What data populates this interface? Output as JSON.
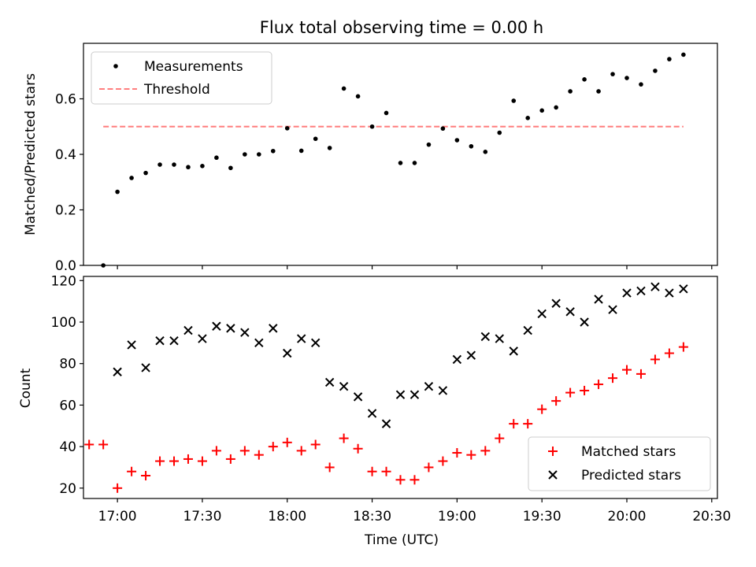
{
  "figure": {
    "title": "Flux total observing time = 0.00 h"
  },
  "chart_data": [
    {
      "type": "scatter",
      "name": "ratio-panel",
      "ylabel": "Matched/Predicted stars",
      "xlabel": "",
      "xlim": [
        "16:48",
        "20:32"
      ],
      "ylim": [
        0,
        0.8
      ],
      "yticks": [
        0.0,
        0.2,
        0.4,
        0.6
      ],
      "ytick_labels": [
        "0.0",
        "0.2",
        "0.4",
        "0.6"
      ],
      "grid": false,
      "legend": "top-left",
      "series": [
        {
          "name": "Measurements",
          "kind": "points",
          "color": "#000000",
          "x": [
            "16:55",
            "17:00",
            "17:05",
            "17:10",
            "17:15",
            "17:20",
            "17:25",
            "17:30",
            "17:35",
            "17:40",
            "17:45",
            "17:50",
            "17:55",
            "18:00",
            "18:05",
            "18:10",
            "18:15",
            "18:20",
            "18:25",
            "18:30",
            "18:35",
            "18:40",
            "18:45",
            "18:50",
            "18:55",
            "19:00",
            "19:05",
            "19:10",
            "19:15",
            "19:20",
            "19:25",
            "19:30",
            "19:35",
            "19:40",
            "19:45",
            "19:50",
            "19:55",
            "20:00",
            "20:05",
            "20:10",
            "20:15",
            "20:20"
          ],
          "y": [
            0.0,
            0.265,
            0.315,
            0.333,
            0.363,
            0.363,
            0.354,
            0.358,
            0.388,
            0.351,
            0.4,
            0.4,
            0.412,
            0.494,
            0.413,
            0.456,
            0.423,
            0.637,
            0.609,
            0.5,
            0.549,
            0.369,
            0.369,
            0.435,
            0.493,
            0.451,
            0.429,
            0.409,
            0.478,
            0.593,
            0.531,
            0.558,
            0.569,
            0.627,
            0.67,
            0.627,
            0.689,
            0.675,
            0.652,
            0.701,
            0.743,
            0.759
          ]
        },
        {
          "name": "Threshold",
          "kind": "dashed-line",
          "color": "#ff7f7f",
          "x": [
            "16:55",
            "20:20"
          ],
          "y": [
            0.5,
            0.5
          ]
        }
      ]
    },
    {
      "type": "scatter",
      "name": "count-panel",
      "ylabel": "Count",
      "xlabel": "Time (UTC)",
      "xlim": [
        "16:48",
        "20:32"
      ],
      "xticks": [
        "17:00",
        "17:30",
        "18:00",
        "18:30",
        "19:00",
        "19:30",
        "20:00",
        "20:30"
      ],
      "ylim": [
        15,
        122
      ],
      "yticks": [
        20,
        40,
        60,
        80,
        100,
        120
      ],
      "ytick_labels": [
        "20",
        "40",
        "60",
        "80",
        "100",
        "120"
      ],
      "grid": false,
      "legend": "bottom-right",
      "series": [
        {
          "name": "Matched stars",
          "marker": "plus",
          "color": "#ff0000",
          "x": [
            "16:50",
            "16:55",
            "17:00",
            "17:05",
            "17:10",
            "17:15",
            "17:20",
            "17:25",
            "17:30",
            "17:35",
            "17:40",
            "17:45",
            "17:50",
            "17:55",
            "18:00",
            "18:05",
            "18:10",
            "18:15",
            "18:20",
            "18:25",
            "18:30",
            "18:35",
            "18:40",
            "18:45",
            "18:50",
            "18:55",
            "19:00",
            "19:05",
            "19:10",
            "19:15",
            "19:20",
            "19:25",
            "19:30",
            "19:35",
            "19:40",
            "19:45",
            "19:50",
            "19:55",
            "20:00",
            "20:05",
            "20:10",
            "20:15",
            "20:20"
          ],
          "y": [
            41,
            41,
            20,
            28,
            26,
            33,
            33,
            34,
            33,
            38,
            34,
            38,
            36,
            40,
            42,
            38,
            41,
            30,
            44,
            39,
            28,
            28,
            24,
            24,
            30,
            33,
            37,
            36,
            38,
            44,
            51,
            51,
            58,
            62,
            66,
            67,
            70,
            73,
            77,
            75,
            82,
            85,
            88
          ]
        },
        {
          "name": "Predicted stars",
          "marker": "x",
          "color": "#000000",
          "x": [
            "17:00",
            "17:05",
            "17:10",
            "17:15",
            "17:20",
            "17:25",
            "17:30",
            "17:35",
            "17:40",
            "17:45",
            "17:50",
            "17:55",
            "18:00",
            "18:05",
            "18:10",
            "18:15",
            "18:20",
            "18:25",
            "18:30",
            "18:35",
            "18:40",
            "18:45",
            "18:50",
            "18:55",
            "19:00",
            "19:05",
            "19:10",
            "19:15",
            "19:20",
            "19:25",
            "19:30",
            "19:35",
            "19:40",
            "19:45",
            "19:50",
            "19:55",
            "20:00",
            "20:05",
            "20:10",
            "20:15",
            "20:20"
          ],
          "y": [
            76,
            89,
            78,
            91,
            91,
            96,
            92,
            98,
            97,
            95,
            90,
            97,
            85,
            92,
            90,
            71,
            69,
            64,
            56,
            51,
            65,
            65,
            69,
            67,
            82,
            84,
            93,
            92,
            86,
            96,
            104,
            109,
            105,
            100,
            111,
            106,
            114,
            115,
            117,
            114,
            116
          ]
        }
      ]
    }
  ]
}
